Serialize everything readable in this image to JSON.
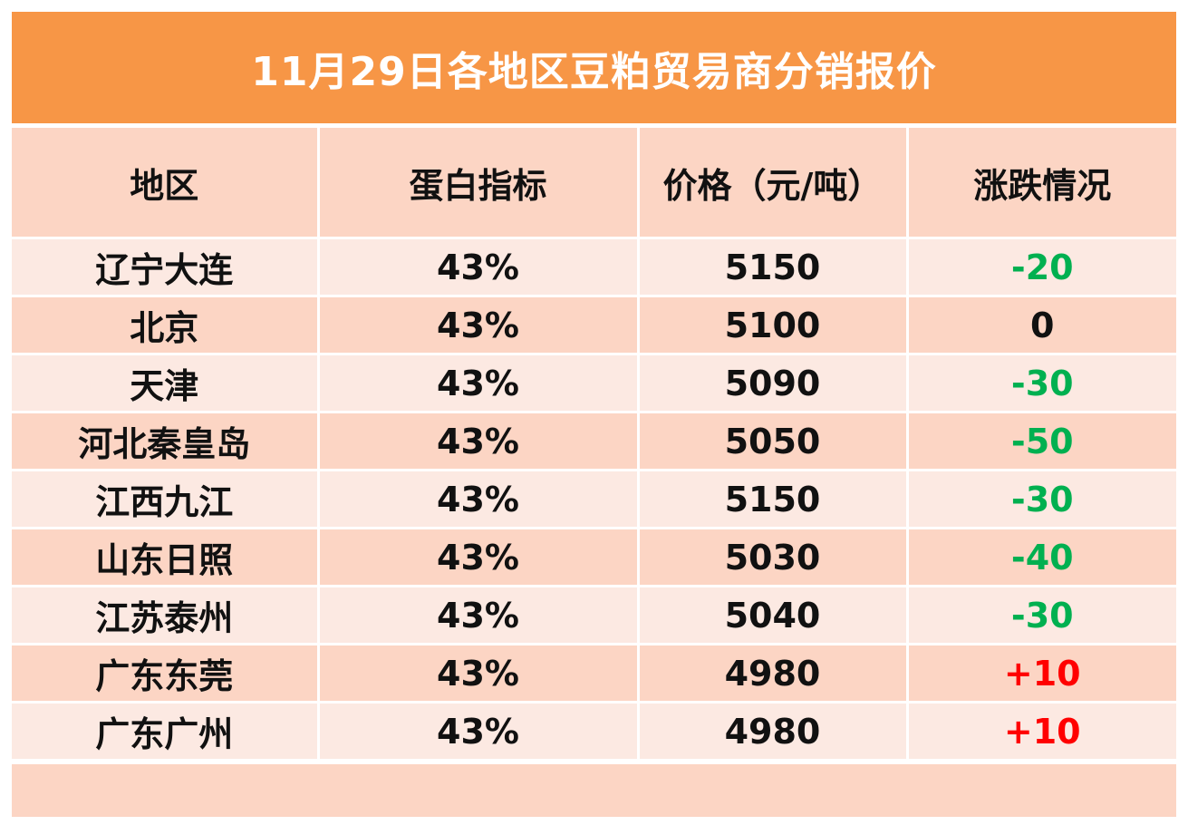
{
  "title": "11月29日各地区豆粕贸易商分销报价",
  "columns": [
    "地区",
    "蛋白指标",
    "价格（元/吨）",
    "涨跌情况"
  ],
  "rows": [
    {
      "region": "辽宁大连",
      "protein": "43%",
      "price": "5150",
      "change": "-20",
      "direction": "down"
    },
    {
      "region": "北京",
      "protein": "43%",
      "price": "5100",
      "change": "0",
      "direction": "flat"
    },
    {
      "region": "天津",
      "protein": "43%",
      "price": "5090",
      "change": "-30",
      "direction": "down"
    },
    {
      "region": "河北秦皇岛",
      "protein": "43%",
      "price": "5050",
      "change": "-50",
      "direction": "down"
    },
    {
      "region": "江西九江",
      "protein": "43%",
      "price": "5150",
      "change": "-30",
      "direction": "down"
    },
    {
      "region": "山东日照",
      "protein": "43%",
      "price": "5030",
      "change": "-40",
      "direction": "down"
    },
    {
      "region": "江苏泰州",
      "protein": "43%",
      "price": "5040",
      "change": "-30",
      "direction": "down"
    },
    {
      "region": "广东东莞",
      "protein": "43%",
      "price": "4980",
      "change": "+10",
      "direction": "up"
    },
    {
      "region": "广东广州",
      "protein": "43%",
      "price": "4980",
      "change": "+10",
      "direction": "up"
    }
  ],
  "colors": {
    "header": "#F79646",
    "band_dark": "#FCD5C4",
    "band_light": "#FCE9E2",
    "down": "#00B050",
    "up": "#FF0000"
  }
}
